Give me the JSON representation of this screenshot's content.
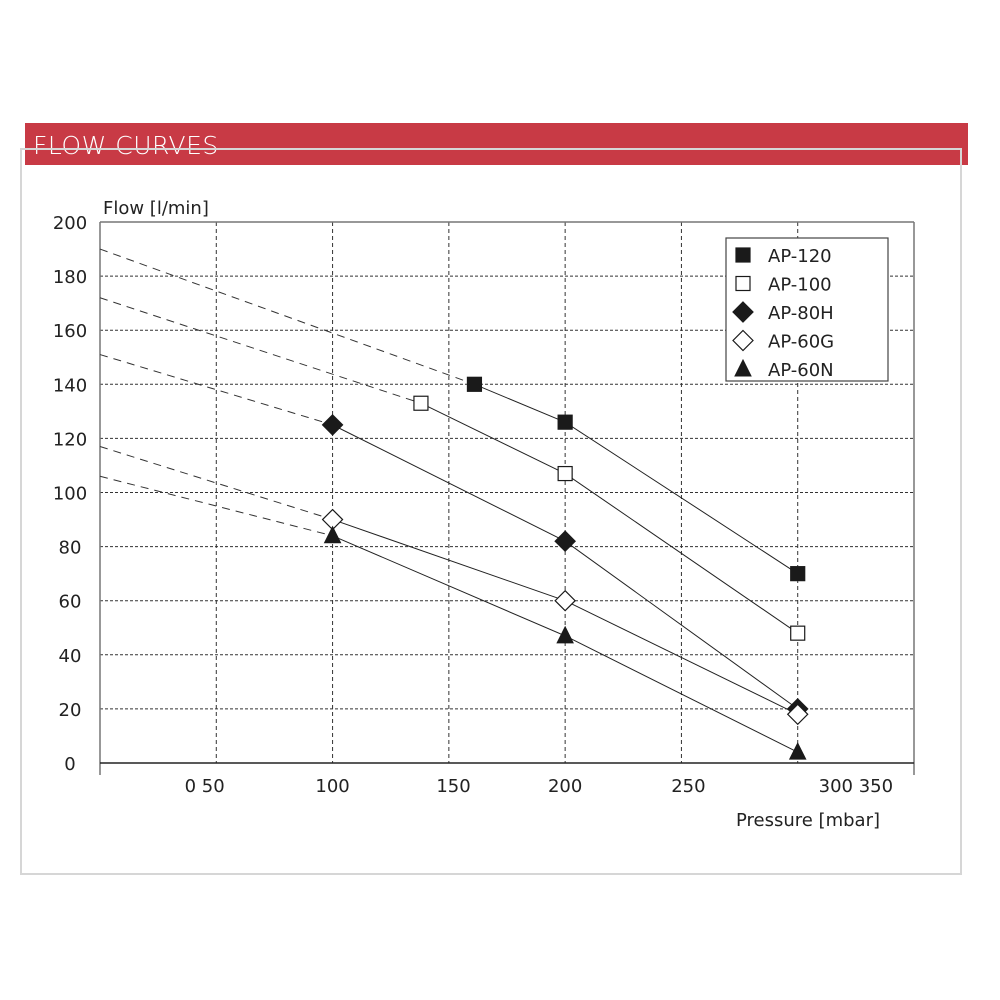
{
  "header": {
    "title": "FLOW CURVES"
  },
  "colors": {
    "banner": "#c83a45",
    "ink": "#1a1a1a"
  },
  "chart_data": {
    "type": "line",
    "title": "FLOW CURVES",
    "xlabel": "Pressure [mbar]",
    "ylabel": "Flow [l/min]",
    "xlim": [
      0,
      350
    ],
    "ylim": [
      0,
      200
    ],
    "x_tick_labels": [
      {
        "label": "0 50",
        "at": 45
      },
      {
        "label": "100",
        "at": 100
      },
      {
        "label": "150",
        "at": 152
      },
      {
        "label": "200",
        "at": 200
      },
      {
        "label": "250",
        "at": 253
      },
      {
        "label": "300 350",
        "at": 325
      }
    ],
    "y_ticks": [
      0,
      20,
      40,
      60,
      80,
      100,
      120,
      140,
      160,
      180,
      200
    ],
    "grid": true,
    "legend_position": "top-right",
    "series": [
      {
        "name": "AP-120",
        "marker": "square-filled",
        "extrapolated_at_0": 190,
        "points": [
          [
            161,
            140
          ],
          [
            200,
            126
          ],
          [
            300,
            70
          ]
        ]
      },
      {
        "name": "AP-100",
        "marker": "square-open",
        "extrapolated_at_0": 172,
        "points": [
          [
            138,
            133
          ],
          [
            200,
            107
          ],
          [
            300,
            48
          ]
        ]
      },
      {
        "name": "AP-80H",
        "marker": "diamond-filled",
        "extrapolated_at_0": 151,
        "points": [
          [
            100,
            125
          ],
          [
            200,
            82
          ],
          [
            300,
            20
          ]
        ]
      },
      {
        "name": "AP-60G",
        "marker": "diamond-open",
        "extrapolated_at_0": 117,
        "points": [
          [
            100,
            90
          ],
          [
            200,
            60
          ],
          [
            300,
            18
          ]
        ]
      },
      {
        "name": "AP-60N",
        "marker": "triangle-filled",
        "extrapolated_at_0": 106,
        "points": [
          [
            100,
            84
          ],
          [
            200,
            47
          ],
          [
            300,
            4
          ]
        ]
      }
    ]
  }
}
